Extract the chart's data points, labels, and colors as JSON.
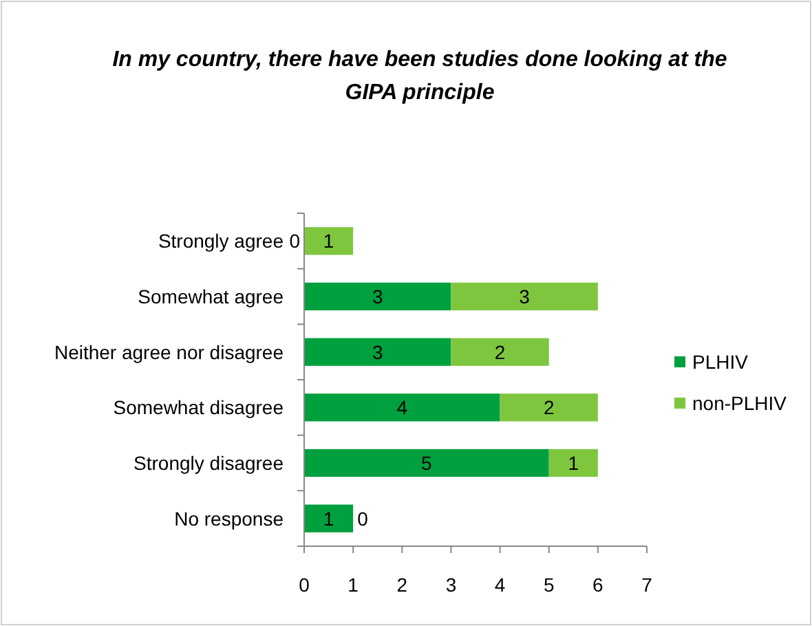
{
  "chart_data": {
    "type": "bar",
    "orientation": "horizontal",
    "stacked": true,
    "title": "In my country, there have been studies done looking at the GIPA principle",
    "categories": [
      "Strongly agree",
      "Somewhat agree",
      "Neither agree nor disagree",
      "Somewhat disagree",
      "Strongly disagree",
      "No response"
    ],
    "series": [
      {
        "name": "PLHIV",
        "color": "#00a03e",
        "values": [
          0,
          3,
          3,
          4,
          5,
          1
        ]
      },
      {
        "name": "non-PLHIV",
        "color": "#7fc63f",
        "values": [
          1,
          3,
          2,
          2,
          1,
          0
        ]
      }
    ],
    "xlim": [
      0,
      7
    ],
    "xticks": [
      0,
      1,
      2,
      3,
      4,
      5,
      6,
      7
    ],
    "data_labels": true,
    "legend": "right",
    "grid": false
  }
}
